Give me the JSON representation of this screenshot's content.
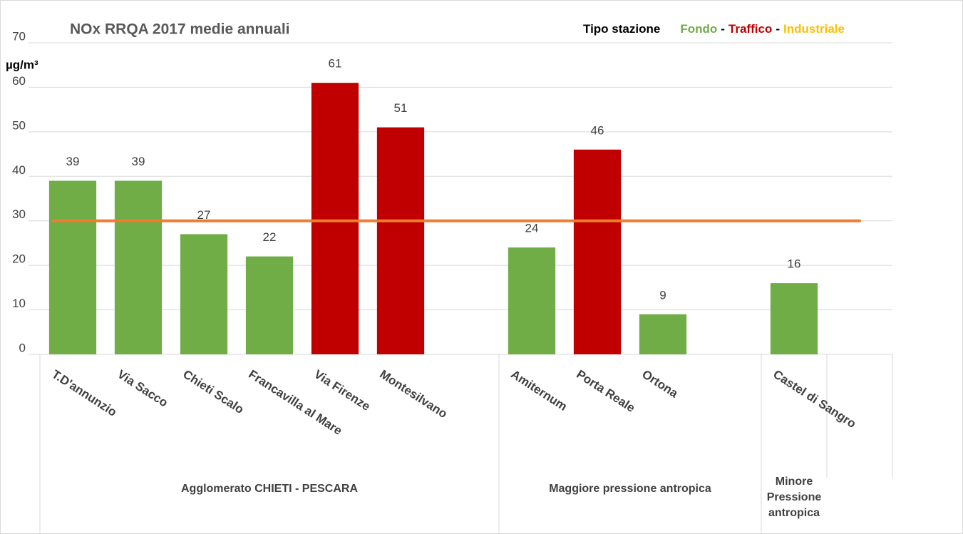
{
  "chart_data": {
    "type": "bar",
    "title": "NOx  RRQA  2017 medie annuali",
    "y_axis_label": "µg/m³",
    "legend": {
      "title": "Tipo stazione",
      "separator": "-",
      "entries": [
        {
          "name": "Fondo",
          "color": "#70ad47"
        },
        {
          "name": "Traffico",
          "color": "#c00000"
        },
        {
          "name": "Industriale",
          "color": "#ffc000"
        }
      ]
    },
    "categories": [
      "T.D'annunzio",
      "Via Sacco",
      "Chieti Scalo",
      "Francavilla al Mare",
      "Via Firenze",
      "Montesilvano",
      null,
      "Amiternum",
      "Porta Reale",
      "Ortona",
      null,
      "Castel di Sangro",
      null
    ],
    "values": [
      39,
      39,
      27,
      22,
      61,
      51,
      null,
      24,
      46,
      9,
      null,
      16,
      null
    ],
    "colors": [
      "#70ad47",
      "#70ad47",
      "#70ad47",
      "#70ad47",
      "#c00000",
      "#c00000",
      null,
      "#70ad47",
      "#c00000",
      "#70ad47",
      null,
      "#70ad47",
      null
    ],
    "groups": [
      "Agglomerato CHIETI - PESCARA",
      "Maggiore pressione antropica",
      "Minore Pressione antropica"
    ],
    "reference_line": {
      "value": 30,
      "color": "#ed7d31"
    },
    "ylim": [
      0,
      70
    ],
    "yticks": [
      0,
      10,
      20,
      30,
      40,
      50,
      60,
      70
    ],
    "grid": true
  }
}
